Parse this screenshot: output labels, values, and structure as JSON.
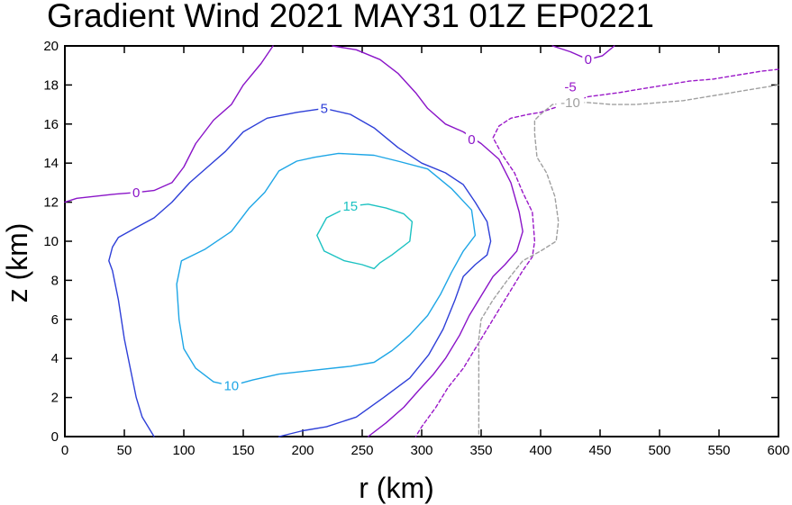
{
  "chart_data": {
    "type": "line",
    "title": "Gradient Wind 2021 MAY31 01Z   EP0221",
    "xlabel": "r (km)",
    "ylabel": "z (km)",
    "xlim": [
      0,
      600
    ],
    "ylim": [
      0,
      20
    ],
    "x_ticks": [
      0,
      50,
      100,
      150,
      200,
      250,
      300,
      350,
      400,
      450,
      500,
      550,
      600
    ],
    "y_ticks": [
      0,
      2,
      4,
      6,
      8,
      10,
      12,
      14,
      16,
      18,
      20
    ],
    "grid": false,
    "colors": {
      "zero": "#8a14c8",
      "five": "#2e3fd8",
      "ten": "#1ea6e6",
      "fifteen": "#1cc2c2",
      "neg_five": "#9a18c8",
      "neg_ten": "#a0a0a0"
    },
    "series": [
      {
        "name": "0 (inner)",
        "label": "0",
        "color": "#8a14c8",
        "dashed": false,
        "label_at": [
          60,
          12.5
        ],
        "points": [
          [
            0,
            12
          ],
          [
            10,
            12.2
          ],
          [
            40,
            12.4
          ],
          [
            60,
            12.5
          ],
          [
            75,
            12.6
          ],
          [
            90,
            13
          ],
          [
            100,
            13.8
          ],
          [
            110,
            15
          ],
          [
            125,
            16.2
          ],
          [
            140,
            17
          ],
          [
            150,
            18
          ],
          [
            165,
            19.1
          ],
          [
            175,
            20
          ]
        ]
      },
      {
        "name": "0 (outer)",
        "label": "0",
        "color": "#8a14c8",
        "dashed": false,
        "label_at": [
          342,
          15.2
        ],
        "points": [
          [
            225,
            20
          ],
          [
            245,
            19.8
          ],
          [
            265,
            19.3
          ],
          [
            280,
            18.6
          ],
          [
            295,
            17.6
          ],
          [
            305,
            16.8
          ],
          [
            320,
            16
          ],
          [
            335,
            15.6
          ],
          [
            350,
            15
          ],
          [
            365,
            14.2
          ],
          [
            375,
            13
          ],
          [
            382,
            11.5
          ],
          [
            385,
            10.5
          ],
          [
            380,
            9.5
          ],
          [
            370,
            8.8
          ],
          [
            360,
            8.2
          ],
          [
            350,
            7.2
          ],
          [
            340,
            6.2
          ],
          [
            332,
            5.2
          ],
          [
            320,
            4
          ],
          [
            310,
            3.2
          ],
          [
            298,
            2.4
          ],
          [
            285,
            1.5
          ],
          [
            270,
            0.7
          ],
          [
            255,
            0
          ]
        ]
      },
      {
        "name": "0 (top)",
        "label": "0",
        "color": "#8a14c8",
        "dashed": false,
        "label_at": [
          440,
          19.3
        ],
        "points": [
          [
            410,
            20
          ],
          [
            425,
            19.7
          ],
          [
            440,
            19.3
          ],
          [
            452,
            19.5
          ],
          [
            462,
            20
          ]
        ]
      },
      {
        "name": "-5",
        "label": "-5",
        "color": "#9a18c8",
        "dashed": true,
        "label_at": [
          425,
          17.9
        ],
        "points": [
          [
            600,
            18.8
          ],
          [
            585,
            18.7
          ],
          [
            565,
            18.5
          ],
          [
            545,
            18.3
          ],
          [
            525,
            18.2
          ],
          [
            505,
            18.0
          ],
          [
            485,
            17.8
          ],
          [
            465,
            17.6
          ],
          [
            440,
            17.4
          ],
          [
            430,
            17.2
          ],
          [
            420,
            17.0
          ],
          [
            410,
            16.8
          ],
          [
            400,
            16.6
          ],
          [
            390,
            16.5
          ],
          [
            375,
            16.3
          ],
          [
            365,
            15.9
          ],
          [
            360,
            15.3
          ],
          [
            368,
            14.4
          ],
          [
            378,
            13.5
          ],
          [
            385,
            12.5
          ],
          [
            393,
            11.5
          ],
          [
            395,
            10
          ],
          [
            393,
            9.2
          ],
          [
            385,
            8.5
          ],
          [
            375,
            7.5
          ],
          [
            365,
            6.5
          ],
          [
            355,
            5.5
          ],
          [
            345,
            4.5
          ],
          [
            335,
            3.5
          ],
          [
            322,
            2.5
          ],
          [
            312,
            1.5
          ],
          [
            300,
            0.5
          ],
          [
            295,
            0
          ]
        ]
      },
      {
        "name": "-10",
        "label": "-10",
        "color": "#a0a0a0",
        "dashed": true,
        "label_at": [
          425,
          17.1
        ],
        "points": [
          [
            600,
            18
          ],
          [
            580,
            17.8
          ],
          [
            560,
            17.6
          ],
          [
            540,
            17.4
          ],
          [
            520,
            17.2
          ],
          [
            500,
            17.1
          ],
          [
            480,
            17.0
          ],
          [
            460,
            17.0
          ],
          [
            440,
            17.1
          ],
          [
            425,
            17.1
          ],
          [
            410,
            17.0
          ],
          [
            400,
            16.5
          ],
          [
            395,
            16.2
          ],
          [
            395,
            15.5
          ],
          [
            397,
            14.3
          ],
          [
            405,
            13.5
          ],
          [
            412,
            12.3
          ],
          [
            415,
            11
          ],
          [
            413,
            10
          ],
          [
            400,
            9.5
          ],
          [
            385,
            9
          ],
          [
            372,
            8
          ],
          [
            360,
            7
          ],
          [
            350,
            6
          ],
          [
            348,
            5
          ],
          [
            348,
            4
          ],
          [
            348,
            3
          ],
          [
            348,
            2
          ],
          [
            348,
            1
          ],
          [
            348,
            0
          ]
        ]
      },
      {
        "name": "5",
        "label": "5",
        "color": "#2e3fd8",
        "dashed": false,
        "label_at": [
          218,
          16.8
        ],
        "points": [
          [
            75,
            0
          ],
          [
            65,
            1
          ],
          [
            60,
            2
          ],
          [
            55,
            3.5
          ],
          [
            50,
            5
          ],
          [
            45,
            7
          ],
          [
            40,
            8.5
          ],
          [
            37,
            9
          ],
          [
            40,
            9.7
          ],
          [
            45,
            10.2
          ],
          [
            60,
            10.7
          ],
          [
            75,
            11.2
          ],
          [
            90,
            12
          ],
          [
            105,
            13
          ],
          [
            120,
            13.8
          ],
          [
            135,
            14.6
          ],
          [
            150,
            15.6
          ],
          [
            170,
            16.3
          ],
          [
            195,
            16.6
          ],
          [
            218,
            16.8
          ],
          [
            240,
            16.5
          ],
          [
            260,
            15.8
          ],
          [
            280,
            14.8
          ],
          [
            300,
            14
          ],
          [
            320,
            13.5
          ],
          [
            335,
            12.9
          ],
          [
            345,
            12
          ],
          [
            355,
            11
          ],
          [
            358,
            10
          ],
          [
            355,
            9.3
          ],
          [
            345,
            8.8
          ],
          [
            335,
            8.2
          ],
          [
            328,
            7
          ],
          [
            318,
            5.5
          ],
          [
            306,
            4.2
          ],
          [
            290,
            3
          ],
          [
            268,
            2
          ],
          [
            245,
            1
          ],
          [
            220,
            0.5
          ],
          [
            200,
            0.3
          ],
          [
            180,
            0
          ]
        ]
      },
      {
        "name": "10",
        "label": "10",
        "color": "#1ea6e6",
        "dashed": false,
        "label_at": [
          140,
          2.6
        ],
        "points": [
          [
            140,
            2.6
          ],
          [
            158,
            2.9
          ],
          [
            180,
            3.2
          ],
          [
            210,
            3.4
          ],
          [
            240,
            3.6
          ],
          [
            260,
            3.8
          ],
          [
            275,
            4.4
          ],
          [
            290,
            5.2
          ],
          [
            305,
            6.2
          ],
          [
            316,
            7.3
          ],
          [
            325,
            8.4
          ],
          [
            335,
            9.5
          ],
          [
            345,
            10.3
          ],
          [
            342,
            11.6
          ],
          [
            325,
            12.7
          ],
          [
            305,
            13.7
          ],
          [
            280,
            14.1
          ],
          [
            260,
            14.4
          ],
          [
            230,
            14.5
          ],
          [
            210,
            14.3
          ],
          [
            195,
            14.1
          ],
          [
            180,
            13.6
          ],
          [
            168,
            12.5
          ],
          [
            155,
            11.7
          ],
          [
            140,
            10.5
          ],
          [
            118,
            9.6
          ],
          [
            98,
            9.0
          ],
          [
            94,
            7.8
          ],
          [
            96,
            6.0
          ],
          [
            100,
            4.5
          ],
          [
            110,
            3.5
          ],
          [
            125,
            2.8
          ],
          [
            140,
            2.6
          ]
        ]
      },
      {
        "name": "15",
        "label": "15",
        "color": "#1cc2c2",
        "dashed": false,
        "label_at": [
          240,
          11.8
        ],
        "points": [
          [
            240,
            11.8
          ],
          [
            220,
            11.2
          ],
          [
            212,
            10.3
          ],
          [
            218,
            9.5
          ],
          [
            235,
            9.0
          ],
          [
            250,
            8.8
          ],
          [
            260,
            8.6
          ],
          [
            265,
            8.9
          ],
          [
            275,
            9.3
          ],
          [
            290,
            10
          ],
          [
            292,
            11
          ],
          [
            285,
            11.4
          ],
          [
            270,
            11.7
          ],
          [
            255,
            11.9
          ],
          [
            240,
            11.8
          ]
        ]
      }
    ]
  }
}
